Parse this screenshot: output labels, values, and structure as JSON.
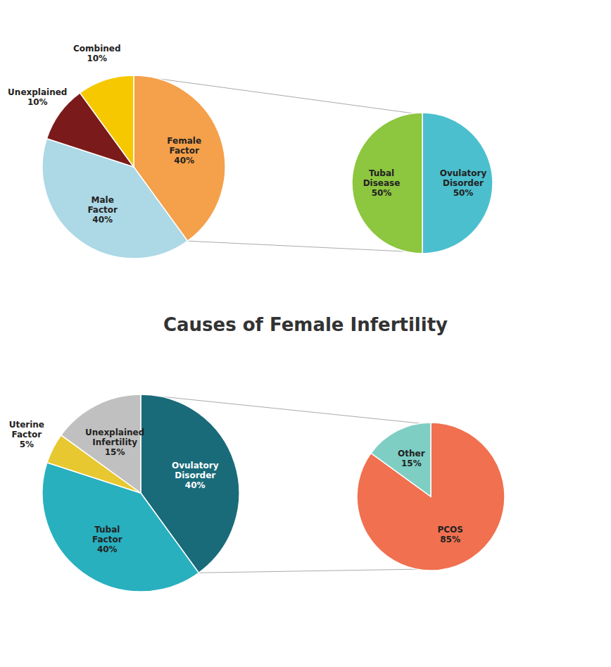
{
  "chart_data": [
    {
      "type": "pie",
      "categories": [
        "Female Factor",
        "Male Factor",
        "Unexplained",
        "Combined"
      ],
      "values": [
        40,
        40,
        10,
        10
      ],
      "value_labels": [
        "40%",
        "40%",
        "10%",
        "10%"
      ],
      "colors": [
        "#F5A04A",
        "#ADD8E6",
        "#7B1A1A",
        "#F5C800"
      ],
      "data_labels": true
    },
    {
      "type": "pie",
      "categories": [
        "Ovulatory Disorder",
        "Tubal Disease"
      ],
      "values": [
        50,
        50
      ],
      "value_labels": [
        "50%",
        "50%"
      ],
      "colors": [
        "#4BBFCE",
        "#8DC63F"
      ],
      "data_labels": true
    },
    {
      "type": "pie",
      "title": "Causes of Female Infertility",
      "categories": [
        "Ovulatory Disorder",
        "Tubal Factor",
        "Uterine Factor",
        "Unexplained Infertility"
      ],
      "values": [
        40,
        40,
        5,
        15
      ],
      "value_labels": [
        "40%",
        "40%",
        "5%",
        "15%"
      ],
      "colors": [
        "#1A6B7A",
        "#28B0BF",
        "#E8C830",
        "#C0C0C0"
      ],
      "data_labels": true
    },
    {
      "type": "pie",
      "categories": [
        "PCOS",
        "Other"
      ],
      "values": [
        85,
        15
      ],
      "value_labels": [
        "85%",
        "15%"
      ],
      "colors": [
        "#F07050",
        "#7ECEC4"
      ],
      "data_labels": true
    }
  ]
}
